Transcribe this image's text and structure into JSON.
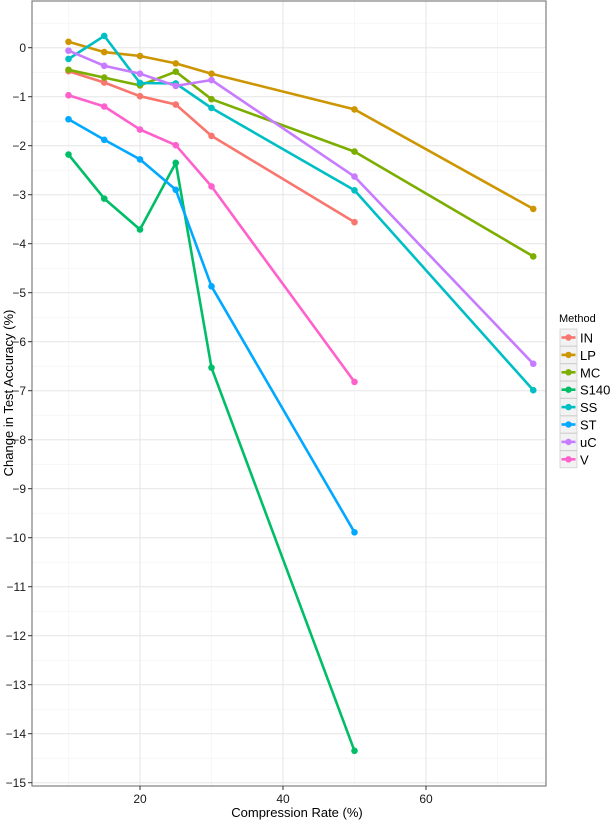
{
  "chart_data": {
    "type": "line",
    "title": "",
    "xlabel": "Compression Rate (%)",
    "ylabel": "Change in Test Accuracy (%)",
    "xlim": [
      7.5,
      78
    ],
    "ylim": [
      -15,
      0.95
    ],
    "x_ticks": [
      20,
      40,
      60
    ],
    "y_ticks": [
      0,
      -1,
      -2,
      -3,
      -4,
      -5,
      -6,
      -7,
      -8,
      -9,
      -10,
      -11,
      -12,
      -13,
      -14,
      -15
    ],
    "grid": true,
    "legend_position": "right",
    "legend_title": "Method",
    "series": [
      {
        "name": "IN",
        "color": "#F8766D",
        "x": [
          10,
          15,
          20,
          25,
          30,
          50
        ],
        "values": [
          -0.48,
          -0.71,
          -0.99,
          -1.16,
          -1.8,
          -3.56
        ]
      },
      {
        "name": "LP",
        "color": "#CD9600",
        "x": [
          10,
          15,
          20,
          25,
          30,
          50,
          75
        ],
        "values": [
          0.12,
          -0.09,
          -0.17,
          -0.32,
          -0.53,
          -1.26,
          -3.29
        ]
      },
      {
        "name": "MC",
        "color": "#7CAE00",
        "x": [
          10,
          15,
          20,
          25,
          30,
          50,
          75
        ],
        "values": [
          -0.45,
          -0.61,
          -0.77,
          -0.49,
          -1.05,
          -2.12,
          -4.26
        ]
      },
      {
        "name": "S140",
        "color": "#00BE67",
        "x": [
          10,
          15,
          20,
          25,
          30,
          50
        ],
        "values": [
          -2.18,
          -3.08,
          -3.71,
          -2.35,
          -6.53,
          -14.35
        ]
      },
      {
        "name": "SS",
        "color": "#00BFC4",
        "x": [
          10,
          15,
          20,
          25,
          30,
          50,
          75
        ],
        "values": [
          -0.23,
          0.24,
          -0.72,
          -0.73,
          -1.23,
          -2.91,
          -6.99
        ]
      },
      {
        "name": "ST",
        "color": "#00A9FF",
        "x": [
          10,
          15,
          20,
          25,
          30,
          50
        ],
        "values": [
          -1.46,
          -1.88,
          -2.28,
          -2.9,
          -4.87,
          -9.89
        ]
      },
      {
        "name": "uC",
        "color": "#C77CFF",
        "x": [
          10,
          15,
          20,
          25,
          30,
          50,
          75
        ],
        "values": [
          -0.06,
          -0.37,
          -0.53,
          -0.78,
          -0.66,
          -2.63,
          -6.45
        ]
      },
      {
        "name": "V",
        "color": "#FF61CC",
        "x": [
          10,
          15,
          20,
          25,
          30,
          50
        ],
        "values": [
          -0.97,
          -1.2,
          -1.67,
          -1.99,
          -2.83,
          -6.82
        ]
      }
    ]
  }
}
